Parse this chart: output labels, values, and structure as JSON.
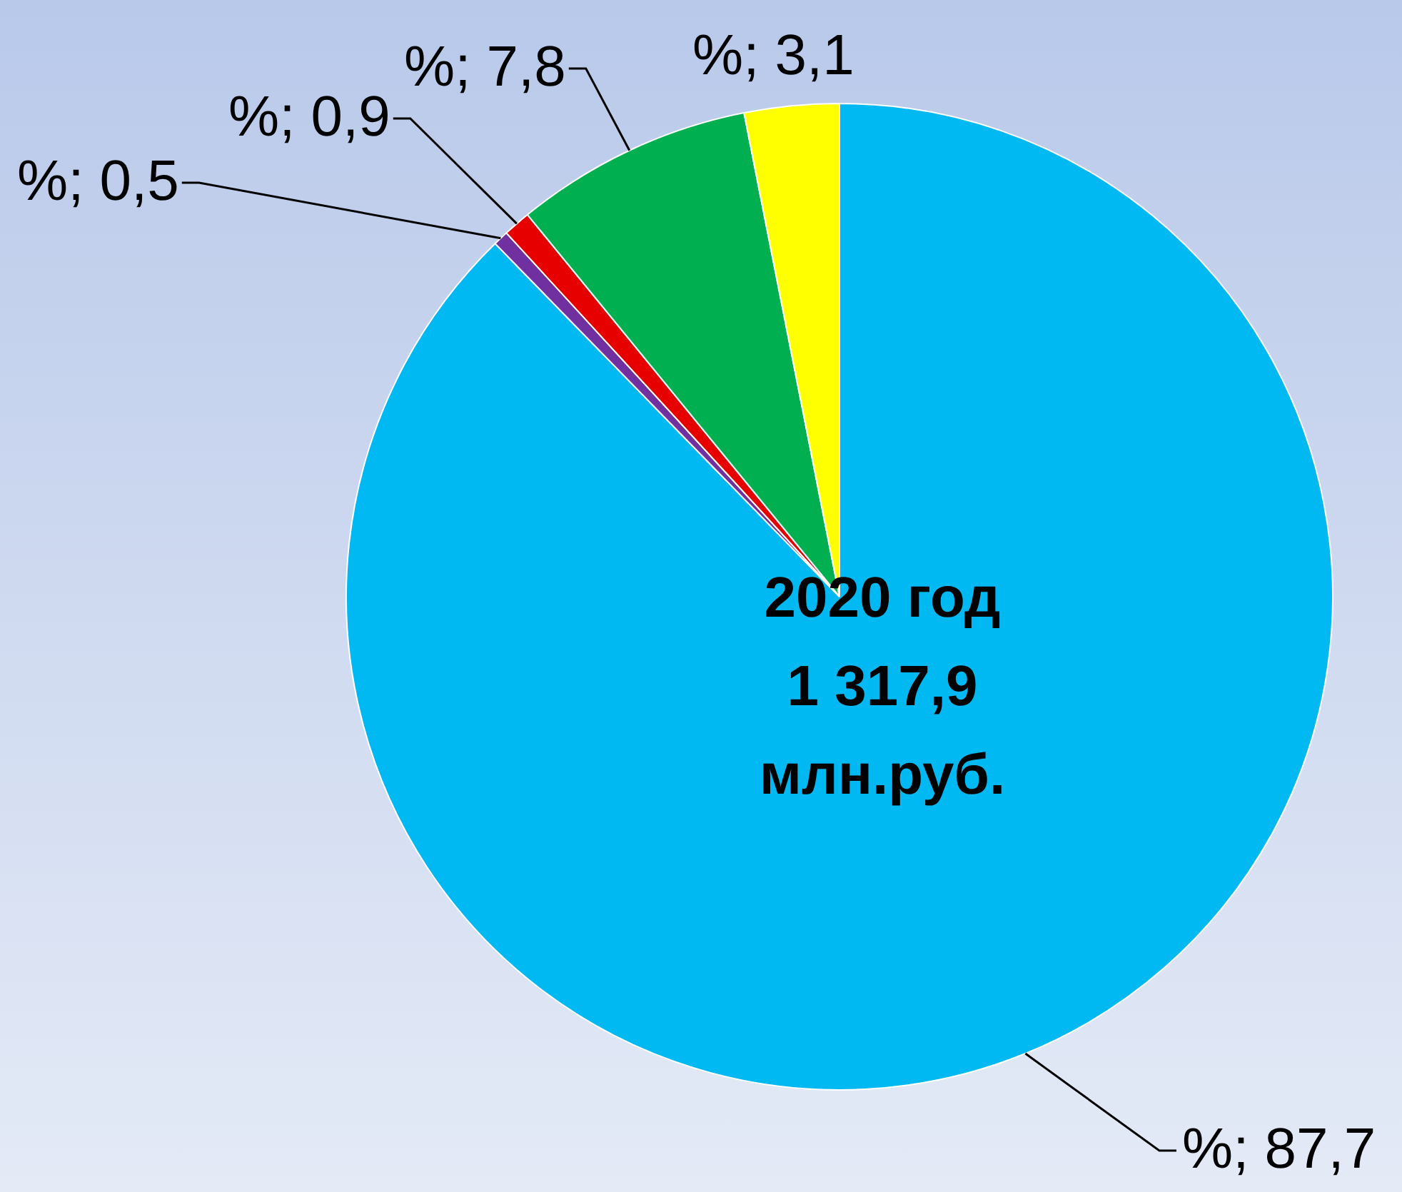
{
  "chart_data": {
    "type": "pie",
    "categories": [
      null,
      null,
      null,
      null,
      null
    ],
    "values": [
      87.7,
      0.5,
      0.9,
      7.8,
      3.1
    ],
    "colors": [
      "#00b9f2",
      "#7030a0",
      "#e60000",
      "#00b050",
      "#ffff00"
    ],
    "value_labels": [
      "%; 87,7",
      "%; 0,5",
      "%; 0,9",
      "%; 7,8",
      "%; 3,1"
    ],
    "annotations": [
      "2020 год",
      "1 317,9",
      "млн.руб."
    ],
    "legend": false
  }
}
